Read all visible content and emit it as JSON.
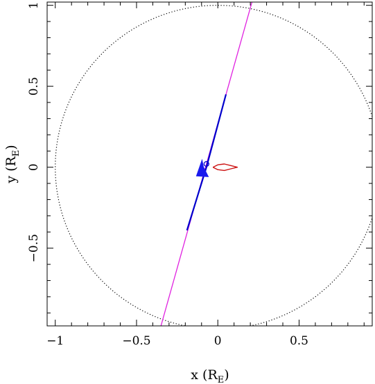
{
  "chart_data": {
    "type": "scatter",
    "title": "",
    "xlabel": {
      "main": "x (R",
      "sub": "E",
      "close": ")"
    },
    "ylabel": {
      "main": "y (R",
      "sub": "E",
      "close": ")"
    },
    "xlim": [
      -1.05,
      0.95
    ],
    "ylim": [
      -0.98,
      1.02
    ],
    "xticks": [
      -1,
      -0.5,
      0,
      0.5
    ],
    "xtick_labels": [
      "−1",
      "−0.5",
      "0",
      "0.5"
    ],
    "yticks": [
      -0.5,
      0,
      0.5,
      1
    ],
    "ytick_labels": [
      "−0.5",
      "0",
      "0.5",
      "1"
    ],
    "grid": false,
    "series": [
      {
        "style": "dotted",
        "color": "#000000",
        "shape": "circle",
        "center": [
          0,
          0
        ],
        "radius": 1.0
      },
      {
        "style": "line",
        "color": "#e020e0",
        "x": [
          -0.35,
          0.21
        ],
        "y": [
          -0.98,
          1.02
        ]
      },
      {
        "style": "line",
        "color": "#0000cc",
        "x": [
          -0.19,
          -0.07,
          0.05
        ],
        "y": [
          -0.39,
          0.0,
          0.45
        ]
      },
      {
        "style": "arrowhead",
        "color": "#1a1aee",
        "x": [
          -0.08
        ],
        "y": [
          0.01
        ],
        "direction": "down-left"
      },
      {
        "style": "circle-marker",
        "color": "#0000cc",
        "x": [
          -0.07
        ],
        "y": [
          0.02
        ]
      },
      {
        "style": "curve",
        "color": "#cc1111",
        "x": [
          -0.03,
          0.0,
          0.04,
          0.08,
          0.12,
          0.08,
          0.04,
          0.0,
          -0.03
        ],
        "y": [
          0.0,
          0.015,
          0.02,
          0.01,
          0.0,
          -0.01,
          -0.02,
          -0.015,
          0.0
        ]
      }
    ]
  }
}
